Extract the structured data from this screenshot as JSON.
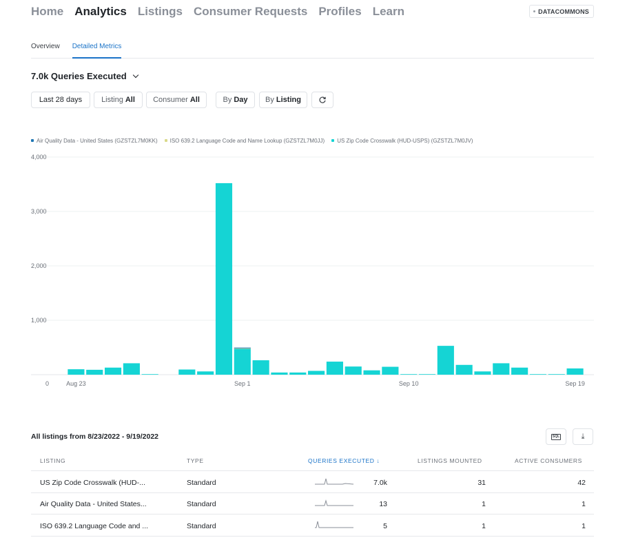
{
  "nav": {
    "items": [
      "Home",
      "Analytics",
      "Listings",
      "Consumer Requests",
      "Profiles",
      "Learn"
    ],
    "active_index": 1,
    "account_label": "DATACOMMONS"
  },
  "subtabs": {
    "items": [
      "Overview",
      "Detailed Metrics"
    ],
    "active_index": 1
  },
  "metric_selector": {
    "label": "7.0k Queries Executed"
  },
  "filters": {
    "date_range": "Last 28 days",
    "listing_label": "Listing",
    "listing_value": "All",
    "consumer_label": "Consumer",
    "consumer_value": "All",
    "group_by_label": "By",
    "group_by_value": "Day",
    "split_label": "By",
    "split_value": "Listing"
  },
  "colors": {
    "series_air": "#1f77b4",
    "series_iso": "#d9d98a",
    "series_zip": "#15d4d4",
    "accent": "#1a73c8"
  },
  "chart_data": {
    "type": "bar",
    "legend_placement": "top-left",
    "grid": true,
    "ylim": [
      0,
      4000
    ],
    "yticks": [
      "0",
      "1,000",
      "2,000",
      "3,000",
      "4,000"
    ],
    "ytick_values": [
      0,
      1000,
      2000,
      3000,
      4000
    ],
    "xtick_labels": [
      {
        "day_index": 0,
        "label": "Aug 23"
      },
      {
        "day_index": 9,
        "label": "Sep 1"
      },
      {
        "day_index": 18,
        "label": "Sep 10"
      },
      {
        "day_index": 27,
        "label": "Sep 19"
      }
    ],
    "categories": [
      "Aug 23",
      "Aug 24",
      "Aug 25",
      "Aug 26",
      "Aug 27",
      "Aug 28",
      "Aug 29",
      "Aug 30",
      "Aug 31",
      "Sep 1",
      "Sep 2",
      "Sep 3",
      "Sep 4",
      "Sep 5",
      "Sep 6",
      "Sep 7",
      "Sep 8",
      "Sep 9",
      "Sep 10",
      "Sep 11",
      "Sep 12",
      "Sep 13",
      "Sep 14",
      "Sep 15",
      "Sep 16",
      "Sep 17",
      "Sep 18",
      "Sep 19"
    ],
    "series": [
      {
        "name": "Air Quality Data - United States (GZSTZL7M0KK)",
        "color": "#1f77b4",
        "values": [
          0,
          0,
          0,
          0,
          0,
          0,
          0,
          0,
          0,
          13,
          0,
          0,
          0,
          0,
          0,
          0,
          0,
          0,
          0,
          0,
          0,
          0,
          0,
          0,
          0,
          0,
          0,
          0
        ]
      },
      {
        "name": "ISO 639.2 Language Code and Name Lookup (GZSTZL7M0JJ)",
        "color": "#d9d98a",
        "values": [
          0,
          0,
          0,
          0,
          0,
          0,
          0,
          0,
          0,
          5,
          0,
          0,
          0,
          0,
          0,
          0,
          0,
          0,
          0,
          0,
          0,
          0,
          0,
          0,
          0,
          0,
          0,
          0
        ]
      },
      {
        "name": "US Zip Code Crosswalk (HUD-USPS) (GZSTZL7M0JV)",
        "color": "#15d4d4",
        "values": [
          100,
          90,
          130,
          210,
          10,
          0,
          95,
          60,
          3520,
          480,
          265,
          40,
          40,
          70,
          240,
          150,
          80,
          145,
          10,
          10,
          530,
          180,
          60,
          210,
          130,
          10,
          10,
          115
        ]
      }
    ]
  },
  "table": {
    "title": "All listings from 8/23/2022 - 9/19/2022",
    "headers": {
      "listing": "LISTING",
      "type": "TYPE",
      "queries": "QUERIES EXECUTED",
      "mounted": "LISTINGS MOUNTED",
      "consumers": "ACTIVE CONSUMERS"
    },
    "sort_column": "queries",
    "sort_direction": "desc",
    "rows": [
      {
        "listing": "US Zip Code Crosswalk (HUD-...",
        "type": "Standard",
        "queries": "7.0k",
        "mounted": "31",
        "consumers": "42"
      },
      {
        "listing": "Air Quality Data - United States...",
        "type": "Standard",
        "queries": "13",
        "mounted": "1",
        "consumers": "1"
      },
      {
        "listing": "ISO 639.2 Language Code and ...",
        "type": "Standard",
        "queries": "5",
        "mounted": "1",
        "consumers": "1"
      }
    ]
  }
}
